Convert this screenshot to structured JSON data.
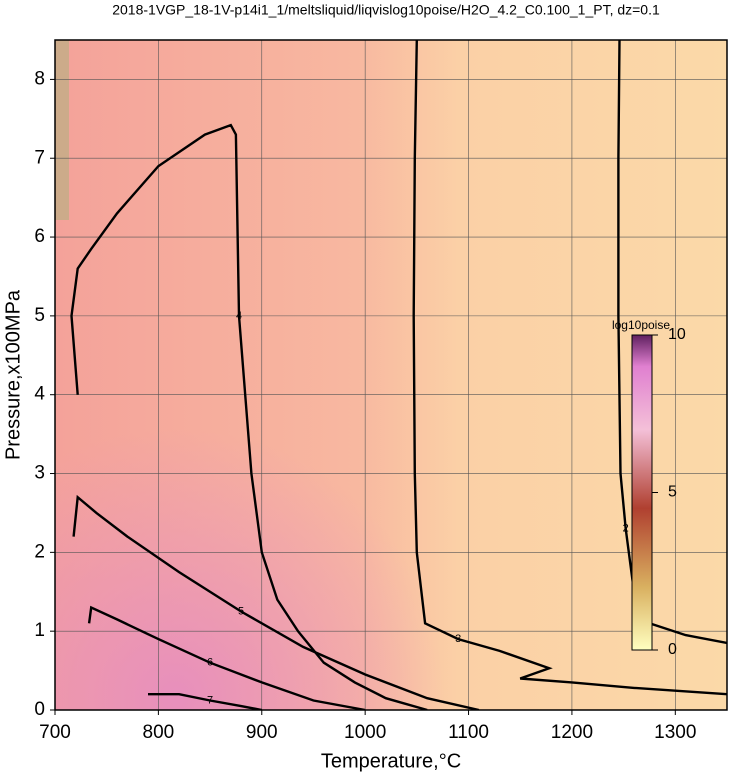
{
  "chart_data": {
    "type": "contour",
    "title": "2018-1VGP_18-1V-p14i1_1/meltsliquid/liqvislog10poise/H2O_4.2_C0.100_1_PT, dz=0.1",
    "x_label": "Temperature,°C",
    "y_label": "Pressure,x100MPa",
    "xlim": [
      700,
      1350
    ],
    "ylim": [
      0,
      8.5
    ],
    "xticks": [
      700,
      800,
      900,
      1000,
      1100,
      1200,
      1300
    ],
    "yticks": [
      0,
      1,
      2,
      3,
      4,
      5,
      6,
      7,
      8
    ],
    "grid": true,
    "colorbar": {
      "label": "log10poise",
      "lim": [
        0,
        10
      ],
      "ticks": [
        0,
        5,
        10
      ]
    },
    "contours": [
      {
        "level": 4,
        "x": [
          722,
          716,
          722,
          735,
          760,
          800,
          845,
          870,
          875,
          878,
          884,
          890,
          900,
          915,
          935,
          960,
          990,
          1020,
          1060
        ],
        "y": [
          4.0,
          5.0,
          5.6,
          5.85,
          6.3,
          6.9,
          7.3,
          7.42,
          7.3,
          5.0,
          4.0,
          3.0,
          2.0,
          1.4,
          1.0,
          0.6,
          0.35,
          0.15,
          0
        ]
      },
      {
        "level": 3,
        "x": [
          1050,
          1048,
          1047,
          1048,
          1050,
          1058,
          1090,
          1130,
          1178,
          1150,
          1200,
          1260,
          1350
        ],
        "y": [
          8.5,
          7.0,
          5.0,
          3.0,
          2.0,
          1.1,
          0.9,
          0.75,
          0.53,
          0.4,
          0.35,
          0.28,
          0.2
        ]
      },
      {
        "level": 2,
        "x": [
          1246,
          1245,
          1245,
          1247,
          1252,
          1260,
          1275,
          1310,
          1350
        ],
        "y": [
          8.5,
          7.0,
          5.0,
          3.0,
          2.3,
          1.5,
          1.1,
          0.95,
          0.85
        ]
      },
      {
        "level": 5,
        "x": [
          718,
          722,
          740,
          770,
          820,
          880,
          940,
          1000,
          1060,
          1110
        ],
        "y": [
          2.2,
          2.7,
          2.5,
          2.2,
          1.75,
          1.25,
          0.8,
          0.45,
          0.15,
          0
        ]
      },
      {
        "level": 6,
        "x": [
          733,
          735,
          760,
          800,
          850,
          900,
          950,
          1000
        ],
        "y": [
          1.1,
          1.3,
          1.15,
          0.9,
          0.6,
          0.35,
          0.12,
          0
        ]
      },
      {
        "level": 7,
        "x": [
          790,
          820,
          850,
          880,
          900
        ],
        "y": [
          0.2,
          0.2,
          0.12,
          0.05,
          0
        ]
      }
    ]
  }
}
